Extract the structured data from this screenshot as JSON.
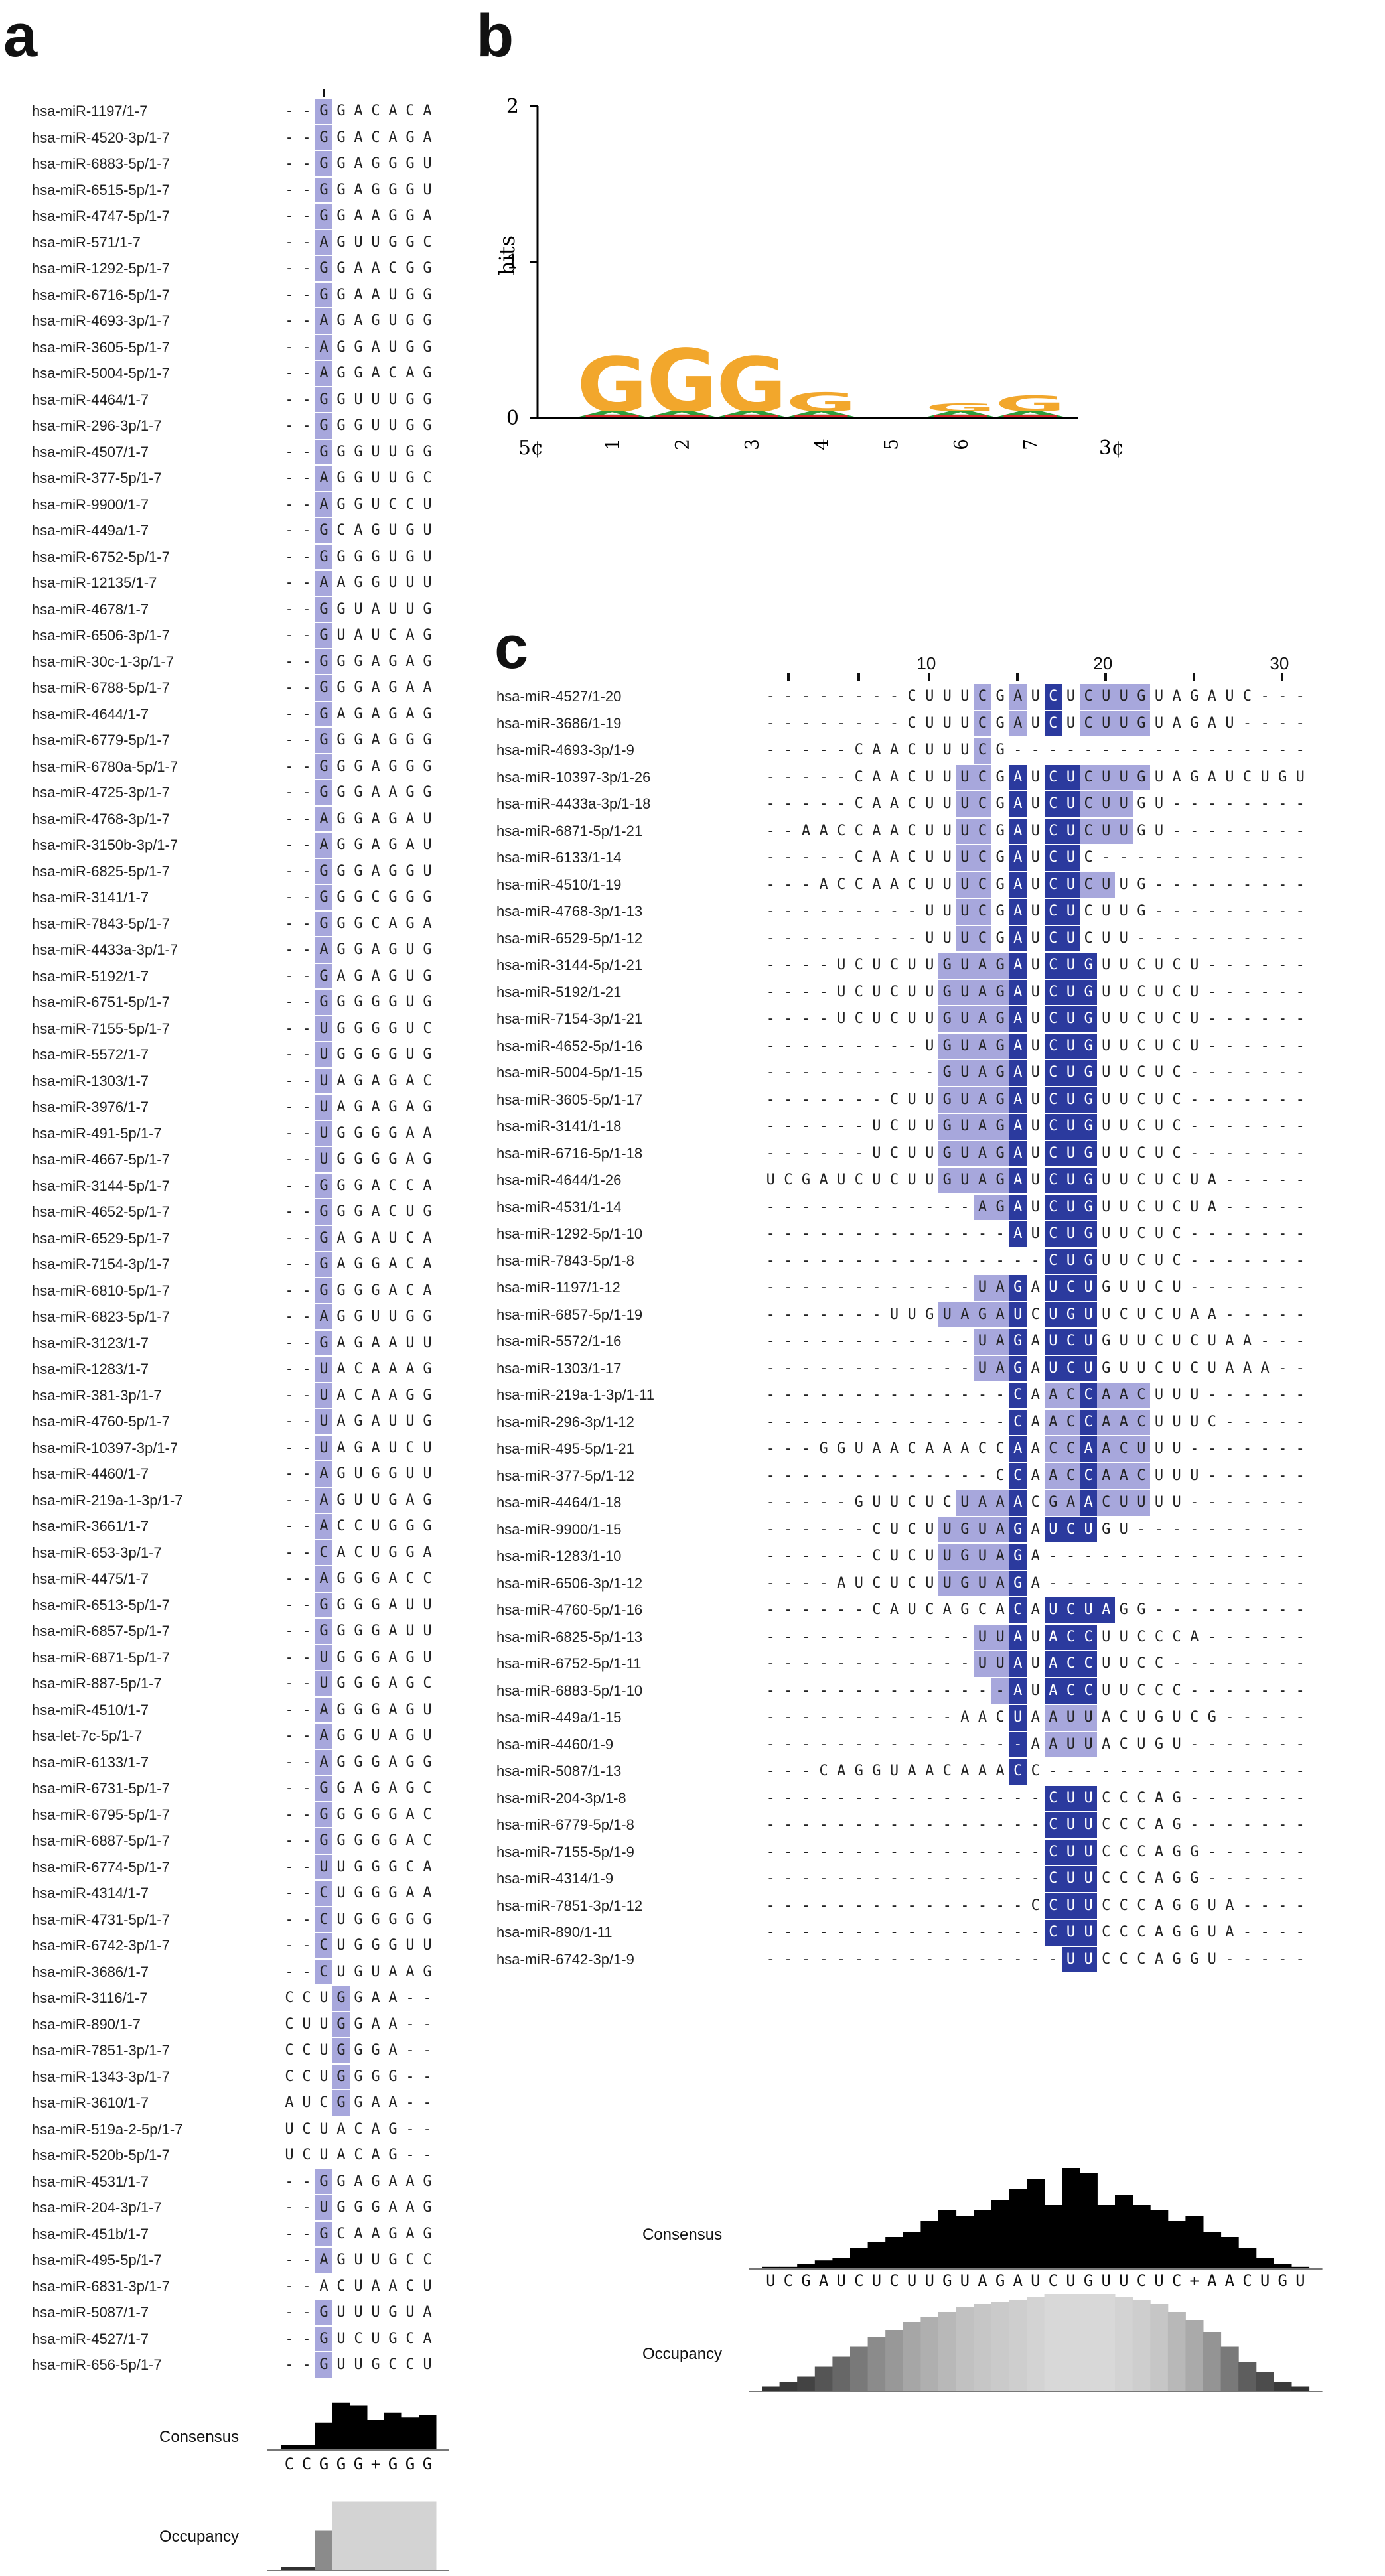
{
  "panels": {
    "a": "a",
    "b": "b",
    "c": "c"
  },
  "colors": {
    "level1": "#dcdcf2",
    "level2": "#a7a7dc",
    "level3": "#7878c8",
    "level4": "#2b3a9e"
  },
  "panel_a": {
    "labels": {
      "consensus": "Consensus",
      "occupancy": "Occupancy"
    },
    "consensus_seq": "CCGGG+GGG",
    "consensus_heights": [
      0.1,
      0.1,
      0.55,
      0.95,
      0.9,
      0.6,
      0.75,
      0.65,
      0.7
    ],
    "occupancy_levels": [
      0.05,
      0.05,
      0.55,
      0.95,
      0.95,
      0.95,
      0.95,
      0.95,
      0.95
    ],
    "rows": [
      {
        "name": "hsa-miR-1197/1-7",
        "seq": "--GGACACA",
        "shade": "002000000"
      },
      {
        "name": "hsa-miR-4520-3p/1-7",
        "seq": "--GGACAGA",
        "shade": "002000000"
      },
      {
        "name": "hsa-miR-6883-5p/1-7",
        "seq": "--GGAGGGU",
        "shade": "002000000"
      },
      {
        "name": "hsa-miR-6515-5p/1-7",
        "seq": "--GGAGGGU",
        "shade": "002000000"
      },
      {
        "name": "hsa-miR-4747-5p/1-7",
        "seq": "--GGAAGGA",
        "shade": "002000000"
      },
      {
        "name": "hsa-miR-571/1-7",
        "seq": "--AGUUGGC",
        "shade": "002000000"
      },
      {
        "name": "hsa-miR-1292-5p/1-7",
        "seq": "--GGAACGG",
        "shade": "002000000"
      },
      {
        "name": "hsa-miR-6716-5p/1-7",
        "seq": "--GGAAUGG",
        "shade": "002000000"
      },
      {
        "name": "hsa-miR-4693-3p/1-7",
        "seq": "--AGAGUGG",
        "shade": "002000000"
      },
      {
        "name": "hsa-miR-3605-5p/1-7",
        "seq": "--AGGAUGG",
        "shade": "002000000"
      },
      {
        "name": "hsa-miR-5004-5p/1-7",
        "seq": "--AGGACAG",
        "shade": "002000000"
      },
      {
        "name": "hsa-miR-4464/1-7",
        "seq": "--GGUUUGG",
        "shade": "002000000"
      },
      {
        "name": "hsa-miR-296-3p/1-7",
        "seq": "--GGGUUGG",
        "shade": "002000000"
      },
      {
        "name": "hsa-miR-4507/1-7",
        "seq": "--GGGUUGG",
        "shade": "002000000"
      },
      {
        "name": "hsa-miR-377-5p/1-7",
        "seq": "--AGGUUGC",
        "shade": "002000000"
      },
      {
        "name": "hsa-miR-9900/1-7",
        "seq": "--AGGUCCU",
        "shade": "002000000"
      },
      {
        "name": "hsa-miR-449a/1-7",
        "seq": "--GCAGUGU",
        "shade": "002000000"
      },
      {
        "name": "hsa-miR-6752-5p/1-7",
        "seq": "--GGGGUGU",
        "shade": "002000000"
      },
      {
        "name": "hsa-miR-12135/1-7",
        "seq": "--AAGGUUU",
        "shade": "002000000"
      },
      {
        "name": "hsa-miR-4678/1-7",
        "seq": "--GGUAUUG",
        "shade": "002000000"
      },
      {
        "name": "hsa-miR-6506-3p/1-7",
        "seq": "--GUAUCAG",
        "shade": "002000000"
      },
      {
        "name": "hsa-miR-30c-1-3p/1-7",
        "seq": "--GGGAGAG",
        "shade": "002000000"
      },
      {
        "name": "hsa-miR-6788-5p/1-7",
        "seq": "--GGGAGAA",
        "shade": "002000000"
      },
      {
        "name": "hsa-miR-4644/1-7",
        "seq": "--GAGAGAG",
        "shade": "002000000"
      },
      {
        "name": "hsa-miR-6779-5p/1-7",
        "seq": "--GGGAGGG",
        "shade": "002000000"
      },
      {
        "name": "hsa-miR-6780a-5p/1-7",
        "seq": "--GGGAGGG",
        "shade": "002000000"
      },
      {
        "name": "hsa-miR-4725-3p/1-7",
        "seq": "--GGGAAGG",
        "shade": "002000000"
      },
      {
        "name": "hsa-miR-4768-3p/1-7",
        "seq": "--AGGAGAU",
        "shade": "002000000"
      },
      {
        "name": "hsa-miR-3150b-3p/1-7",
        "seq": "--AGGAGAU",
        "shade": "002000000"
      },
      {
        "name": "hsa-miR-6825-5p/1-7",
        "seq": "--GGGAGGU",
        "shade": "002000000"
      },
      {
        "name": "hsa-miR-3141/1-7",
        "seq": "--GGGCGGG",
        "shade": "002000000"
      },
      {
        "name": "hsa-miR-7843-5p/1-7",
        "seq": "--GGGCAGA",
        "shade": "002000000"
      },
      {
        "name": "hsa-miR-4433a-3p/1-7",
        "seq": "--AGGAGUG",
        "shade": "002000000"
      },
      {
        "name": "hsa-miR-5192/1-7",
        "seq": "--GAGAGUG",
        "shade": "002000000"
      },
      {
        "name": "hsa-miR-6751-5p/1-7",
        "seq": "--GGGGGUG",
        "shade": "002000000"
      },
      {
        "name": "hsa-miR-7155-5p/1-7",
        "seq": "--UGGGGUC",
        "shade": "002000000"
      },
      {
        "name": "hsa-miR-5572/1-7",
        "seq": "--UGGGGUG",
        "shade": "002000000"
      },
      {
        "name": "hsa-miR-1303/1-7",
        "seq": "--UAGAGAC",
        "shade": "002000000"
      },
      {
        "name": "hsa-miR-3976/1-7",
        "seq": "--UAGAGAG",
        "shade": "002000000"
      },
      {
        "name": "hsa-miR-491-5p/1-7",
        "seq": "--UGGGGAA",
        "shade": "002000000"
      },
      {
        "name": "hsa-miR-4667-5p/1-7",
        "seq": "--UGGGGAG",
        "shade": "002000000"
      },
      {
        "name": "hsa-miR-3144-5p/1-7",
        "seq": "--GGGACCA",
        "shade": "002000000"
      },
      {
        "name": "hsa-miR-4652-5p/1-7",
        "seq": "--GGGACUG",
        "shade": "002000000"
      },
      {
        "name": "hsa-miR-6529-5p/1-7",
        "seq": "--GAGAUCA",
        "shade": "002000000"
      },
      {
        "name": "hsa-miR-7154-3p/1-7",
        "seq": "--GAGGACA",
        "shade": "002000000"
      },
      {
        "name": "hsa-miR-6810-5p/1-7",
        "seq": "--GGGGACA",
        "shade": "002000000"
      },
      {
        "name": "hsa-miR-6823-5p/1-7",
        "seq": "--AGGUUGG",
        "shade": "002000000"
      },
      {
        "name": "hsa-miR-3123/1-7",
        "seq": "--GAGAAUU",
        "shade": "002000000"
      },
      {
        "name": "hsa-miR-1283/1-7",
        "seq": "--UACAAAG",
        "shade": "002000000"
      },
      {
        "name": "hsa-miR-381-3p/1-7",
        "seq": "--UACAAGG",
        "shade": "002000000"
      },
      {
        "name": "hsa-miR-4760-5p/1-7",
        "seq": "--UAGAUUG",
        "shade": "002000000"
      },
      {
        "name": "hsa-miR-10397-3p/1-7",
        "seq": "--UAGAUCU",
        "shade": "002000000"
      },
      {
        "name": "hsa-miR-4460/1-7",
        "seq": "--AGUGGUU",
        "shade": "002000000"
      },
      {
        "name": "hsa-miR-219a-1-3p/1-7",
        "seq": "--AGUUGAG",
        "shade": "002000000"
      },
      {
        "name": "hsa-miR-3661/1-7",
        "seq": "--ACCUGGG",
        "shade": "002000000"
      },
      {
        "name": "hsa-miR-653-3p/1-7",
        "seq": "--CACUGGA",
        "shade": "002000000"
      },
      {
        "name": "hsa-miR-4475/1-7",
        "seq": "--AGGGACC",
        "shade": "002000000"
      },
      {
        "name": "hsa-miR-6513-5p/1-7",
        "seq": "--GGGGAUU",
        "shade": "002000000"
      },
      {
        "name": "hsa-miR-6857-5p/1-7",
        "seq": "--GGGGAUU",
        "shade": "002000000"
      },
      {
        "name": "hsa-miR-6871-5p/1-7",
        "seq": "--UGGGAGU",
        "shade": "002000000"
      },
      {
        "name": "hsa-miR-887-5p/1-7",
        "seq": "--UGGGAGC",
        "shade": "002000000"
      },
      {
        "name": "hsa-miR-4510/1-7",
        "seq": "--AGGGAGU",
        "shade": "002000000"
      },
      {
        "name": "hsa-let-7c-5p/1-7",
        "seq": "--AGGUAGU",
        "shade": "002000000"
      },
      {
        "name": "hsa-miR-6133/1-7",
        "seq": "--AGGGAGG",
        "shade": "002000000"
      },
      {
        "name": "hsa-miR-6731-5p/1-7",
        "seq": "--GGAGAGC",
        "shade": "002000000"
      },
      {
        "name": "hsa-miR-6795-5p/1-7",
        "seq": "--GGGGGAC",
        "shade": "002000000"
      },
      {
        "name": "hsa-miR-6887-5p/1-7",
        "seq": "--GGGGGAC",
        "shade": "002000000"
      },
      {
        "name": "hsa-miR-6774-5p/1-7",
        "seq": "--UUGGGCA",
        "shade": "002000000"
      },
      {
        "name": "hsa-miR-4314/1-7",
        "seq": "--CUGGGAA",
        "shade": "002000000"
      },
      {
        "name": "hsa-miR-4731-5p/1-7",
        "seq": "--CUGGGGG",
        "shade": "002000000"
      },
      {
        "name": "hsa-miR-6742-3p/1-7",
        "seq": "--CUGGGUU",
        "shade": "002000000"
      },
      {
        "name": "hsa-miR-3686/1-7",
        "seq": "--CUGUAAG",
        "shade": "002000000"
      },
      {
        "name": "hsa-miR-3116/1-7",
        "seq": "CCUGGAA--",
        "shade": "000200000"
      },
      {
        "name": "hsa-miR-890/1-7",
        "seq": "CUUGGAA--",
        "shade": "000200000"
      },
      {
        "name": "hsa-miR-7851-3p/1-7",
        "seq": "CCUGGGA--",
        "shade": "000200000"
      },
      {
        "name": "hsa-miR-1343-3p/1-7",
        "seq": "CCUGGGG--",
        "shade": "000200000"
      },
      {
        "name": "hsa-miR-3610/1-7",
        "seq": "AUCGGAA--",
        "shade": "000200000"
      },
      {
        "name": "hsa-miR-519a-2-5p/1-7",
        "seq": "UCUACAG--",
        "shade": "000000000"
      },
      {
        "name": "hsa-miR-520b-5p/1-7",
        "seq": "UCUACAG--",
        "shade": "000000000"
      },
      {
        "name": "hsa-miR-4531/1-7",
        "seq": "--GGAGAAG",
        "shade": "002000000"
      },
      {
        "name": "hsa-miR-204-3p/1-7",
        "seq": "--UGGGAAG",
        "shade": "002000000"
      },
      {
        "name": "hsa-miR-451b/1-7",
        "seq": "--GCAAGAG",
        "shade": "002000000"
      },
      {
        "name": "hsa-miR-495-5p/1-7",
        "seq": "--AGUUGCC",
        "shade": "002000000"
      },
      {
        "name": "hsa-miR-6831-3p/1-7",
        "seq": "--ACUAACU",
        "shade": "000000000"
      },
      {
        "name": "hsa-miR-5087/1-7",
        "seq": "--GUUUGUA",
        "shade": "002000000"
      },
      {
        "name": "hsa-miR-4527/1-7",
        "seq": "--GUCUGCA",
        "shade": "002000000"
      },
      {
        "name": "hsa-miR-656-5p/1-7",
        "seq": "--GUUGCCU",
        "shade": "002000000"
      }
    ]
  },
  "panel_b": {
    "y_label": "bits",
    "y_ticks": [
      "2",
      "1",
      "0"
    ],
    "x_positions": [
      "1",
      "2",
      "3",
      "4",
      "5",
      "6",
      "7"
    ],
    "x_start": "5¢",
    "x_end": "3¢",
    "logo_letters": [
      {
        "pos": 1,
        "letter": "G",
        "height": 0.35,
        "color": "#f2a72c"
      },
      {
        "pos": 2,
        "letter": "G",
        "height": 0.4,
        "color": "#f2a72c"
      },
      {
        "pos": 3,
        "letter": "G",
        "height": 0.35,
        "color": "#f2a72c"
      },
      {
        "pos": 4,
        "letter": "G",
        "height": 0.12,
        "color": "#f2a72c"
      },
      {
        "pos": 6,
        "letter": "G",
        "height": 0.05,
        "color": "#f2a72c"
      },
      {
        "pos": 7,
        "letter": "G",
        "height": 0.1,
        "color": "#f2a72c"
      }
    ]
  },
  "panel_c": {
    "ruler": [
      "10",
      "20",
      "30"
    ],
    "labels": {
      "consensus": "Consensus",
      "occupancy": "Occupancy"
    },
    "consensus_seq": "UCGAUCUCUUGUAGAUCUGUUCUC+AACUGU",
    "consensus_heights": [
      0.02,
      0.02,
      0.05,
      0.08,
      0.1,
      0.2,
      0.25,
      0.3,
      0.35,
      0.45,
      0.55,
      0.5,
      0.55,
      0.65,
      0.75,
      0.85,
      0.6,
      0.95,
      0.9,
      0.6,
      0.7,
      0.6,
      0.55,
      0.45,
      0.5,
      0.35,
      0.3,
      0.2,
      0.1,
      0.05,
      0.02
    ],
    "occupancy_levels": [
      0.05,
      0.1,
      0.15,
      0.25,
      0.35,
      0.45,
      0.55,
      0.62,
      0.7,
      0.75,
      0.8,
      0.85,
      0.88,
      0.9,
      0.92,
      0.95,
      0.98,
      0.98,
      0.98,
      0.98,
      0.95,
      0.92,
      0.88,
      0.8,
      0.72,
      0.6,
      0.45,
      0.3,
      0.2,
      0.1,
      0.05
    ],
    "rows": [
      {
        "name": "hsa-miR-4527/1-20",
        "seq": "--------CUUUCGAUCUCUUGUAGAUC---",
        "shade": "0000000000002020402222000000000"
      },
      {
        "name": "hsa-miR-3686/1-19",
        "seq": "--------CUUUCGAUCUCUUGUAGAU----",
        "shade": "0000000000002020402222000000000"
      },
      {
        "name": "hsa-miR-4693-3p/1-9",
        "seq": "-----CAACUUUCG-----------------",
        "shade": "0000000000002000000000000000000"
      },
      {
        "name": "hsa-miR-10397-3p/1-26",
        "seq": "-----CAACUUUCGAUCUCUUGUAGAUCUGU",
        "shade": "0000000000022040442222000000000"
      },
      {
        "name": "hsa-miR-4433a-3p/1-18",
        "seq": "-----CAACUUUCGAUCUCUUGU--------",
        "shade": "0000000000022040442220000000000"
      },
      {
        "name": "hsa-miR-6871-5p/1-21",
        "seq": "--AACCAACUUUCGAUCUCUUGU--------",
        "shade": "0000000000022040442220000000000"
      },
      {
        "name": "hsa-miR-6133/1-14",
        "seq": "-----CAACUUUCGAUCUC------------",
        "shade": "0000000000022040440000000000000"
      },
      {
        "name": "hsa-miR-4510/1-19",
        "seq": "---ACCAACUUUCGAUCUCUUG---------",
        "shade": "0000000000022040442200000000000"
      },
      {
        "name": "hsa-miR-4768-3p/1-13",
        "seq": "---------UUUCGAUCUCUUG---------",
        "shade": "0000000000022040440000000000000"
      },
      {
        "name": "hsa-miR-6529-5p/1-12",
        "seq": "---------UUUCGAUCUCUU----------",
        "shade": "0000000000022040440000000000000"
      },
      {
        "name": "hsa-miR-3144-5p/1-21",
        "seq": "----UCUCUUGUAGAUCUGUUCUCU------",
        "shade": "0000000000222240444000000000000"
      },
      {
        "name": "hsa-miR-5192/1-21",
        "seq": "----UCUCUUGUAGAUCUGUUCUCU------",
        "shade": "0000000000222240444000000000000"
      },
      {
        "name": "hsa-miR-7154-3p/1-21",
        "seq": "----UCUCUUGUAGAUCUGUUCUCU------",
        "shade": "0000000000222240444000000000000"
      },
      {
        "name": "hsa-miR-4652-5p/1-16",
        "seq": "---------UGUAGAUCUGUUCUCU------",
        "shade": "0000000000222240444000000000000"
      },
      {
        "name": "hsa-miR-5004-5p/1-15",
        "seq": "----------GUAGAUCUGUUCUC-------",
        "shade": "0000000000222240444000000000000"
      },
      {
        "name": "hsa-miR-3605-5p/1-17",
        "seq": "-------CUUGUAGAUCUGUUCUC-------",
        "shade": "0000000000222240444000000000000"
      },
      {
        "name": "hsa-miR-3141/1-18",
        "seq": "------UCUUGUAGAUCUGUUCUC-------",
        "shade": "0000000000222240444000000000000"
      },
      {
        "name": "hsa-miR-6716-5p/1-18",
        "seq": "------UCUUGUAGAUCUGUUCUC-------",
        "shade": "0000000000222240444000000000000"
      },
      {
        "name": "hsa-miR-4644/1-26",
        "seq": "UCGAUCUCUUGUAGAUCUGUUCUCUA-----",
        "shade": "0000000000222240444000000000000"
      },
      {
        "name": "hsa-miR-4531/1-14",
        "seq": "------------AGAUCUGUUCUCUA-----",
        "shade": "0000000000002240444000000000000"
      },
      {
        "name": "hsa-miR-1292-5p/1-10",
        "seq": "--------------AUCUGUUCUC-------",
        "shade": "0000000000000040444000000000000"
      },
      {
        "name": "hsa-miR-7843-5p/1-8",
        "seq": "----------------CUGUUCUC-------",
        "shade": "0000000000000000444000000000000"
      },
      {
        "name": "hsa-miR-1197/1-12",
        "seq": "------------UAGAUCUGUUCU-------",
        "shade": "0000000000002240444000000000000"
      },
      {
        "name": "hsa-miR-6857-5p/1-19",
        "seq": "-------UUGUAGAUCUGUUCUCUAA-----",
        "shade": "0000000000222240444000000000000"
      },
      {
        "name": "hsa-miR-5572/1-16",
        "seq": "------------UAGAUCUGUUCUCUAA---",
        "shade": "0000000000002240444000000000000"
      },
      {
        "name": "hsa-miR-1303/1-17",
        "seq": "------------UAGAUCUGUUCUCUAAA--",
        "shade": "0000000000002240444000000000000"
      },
      {
        "name": "hsa-miR-219a-1-3p/1-11",
        "seq": "--------------CAACCAACUUU------",
        "shade": "0000000000000040224222000000000"
      },
      {
        "name": "hsa-miR-296-3p/1-12",
        "seq": "--------------CAACCAACUUUC-----",
        "shade": "0000000000000040224222000000000"
      },
      {
        "name": "hsa-miR-495-5p/1-21",
        "seq": "---GGUAACAAACCAACCAACUUU-------",
        "shade": "0000000000000040224222000000000"
      },
      {
        "name": "hsa-miR-377-5p/1-12",
        "seq": "-------------CCAACCAACUUU------",
        "shade": "0000000000000040224222000000000"
      },
      {
        "name": "hsa-miR-4464/1-18",
        "seq": "-----GUUCUCUAAACGAACUUUU-------",
        "shade": "0000000000022240224222000000000"
      },
      {
        "name": "hsa-miR-9900/1-15",
        "seq": "------CUCUUGUAGAUCUGU----------",
        "shade": "0000000000222240444000000000000"
      },
      {
        "name": "hsa-miR-1283/1-10",
        "seq": "------CUCUUGUAGA---------------",
        "shade": "0000000000222240000000000000000"
      },
      {
        "name": "hsa-miR-6506-3p/1-12",
        "seq": "----AUCUCUUGUAGA---------------",
        "shade": "0000000000222240000000000000000"
      },
      {
        "name": "hsa-miR-4760-5p/1-16",
        "seq": "------CAUCAGCACAUCUAGG---------",
        "shade": "0000000000000040444400000000000"
      },
      {
        "name": "hsa-miR-6825-5p/1-13",
        "seq": "------------UUAUACCUUCCCA------",
        "shade": "0000000000002240444000000000000"
      },
      {
        "name": "hsa-miR-6752-5p/1-11",
        "seq": "------------UUAUACCUUCC--------",
        "shade": "0000000000002240444000000000000"
      },
      {
        "name": "hsa-miR-6883-5p/1-10",
        "seq": "--------------AUACCUUCCC-------",
        "shade": "0000000000000240444000000000000"
      },
      {
        "name": "hsa-miR-449a/1-15",
        "seq": "-----------AACUAAUUACUGUCG-----",
        "shade": "0000000000000040222000000000000"
      },
      {
        "name": "hsa-miR-4460/1-9",
        "seq": "---------------AAUUACUGU-------",
        "shade": "0000000000000040222000000000000"
      },
      {
        "name": "hsa-miR-5087/1-13",
        "seq": "---CAGGUAACAAACC---------------",
        "shade": "0000000000000040000000000000000"
      },
      {
        "name": "hsa-miR-204-3p/1-8",
        "seq": "----------------CUUCCCAG-------",
        "shade": "0000000000000000444000000000000"
      },
      {
        "name": "hsa-miR-6779-5p/1-8",
        "seq": "----------------CUUCCCAG-------",
        "shade": "0000000000000000444000000000000"
      },
      {
        "name": "hsa-miR-7155-5p/1-9",
        "seq": "----------------CUUCCCAGG------",
        "shade": "0000000000000000444000000000000"
      },
      {
        "name": "hsa-miR-4314/1-9",
        "seq": "----------------CUUCCCAGG------",
        "shade": "0000000000000000444000000000000"
      },
      {
        "name": "hsa-miR-7851-3p/1-12",
        "seq": "---------------CCUUCCCAGGUA----",
        "shade": "0000000000000000444000000000000"
      },
      {
        "name": "hsa-miR-890/1-11",
        "seq": "----------------CUUCCCAGGUA----",
        "shade": "0000000000000000444000000000000"
      },
      {
        "name": "hsa-miR-6742-3p/1-9",
        "seq": "-----------------UUCCCAGGU-----",
        "shade": "0000000000000000044000000000000"
      }
    ]
  }
}
